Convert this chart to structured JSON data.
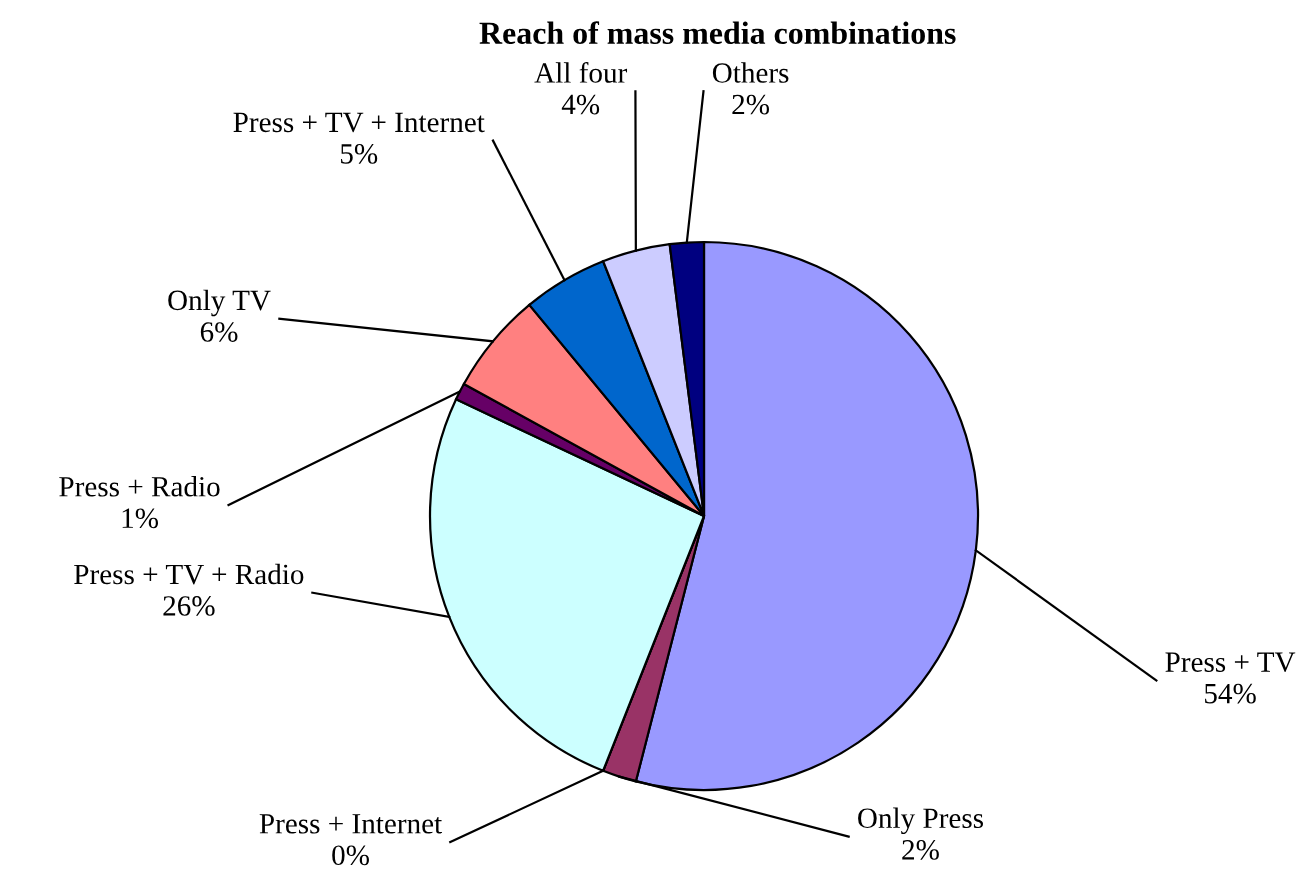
{
  "chart_data": {
    "type": "pie",
    "title": "Reach of mass media combinations",
    "categories": [
      "Press + TV",
      "Only Press",
      "Press + Internet",
      "Press + TV + Radio",
      "Press + Radio",
      "Only TV",
      "Press + TV + Internet",
      "All four",
      "Others"
    ],
    "values": [
      54,
      2,
      0,
      26,
      1,
      6,
      5,
      4,
      2
    ],
    "value_labels": [
      "54%",
      "2%",
      "0%",
      "26%",
      "1%",
      "6%",
      "5%",
      "4%",
      "2%"
    ],
    "colors": [
      "#9999ff",
      "#993366",
      "#ffffcc",
      "#ccffff",
      "#660066",
      "#ff8080",
      "#0066cc",
      "#ccccff",
      "#000080"
    ]
  }
}
